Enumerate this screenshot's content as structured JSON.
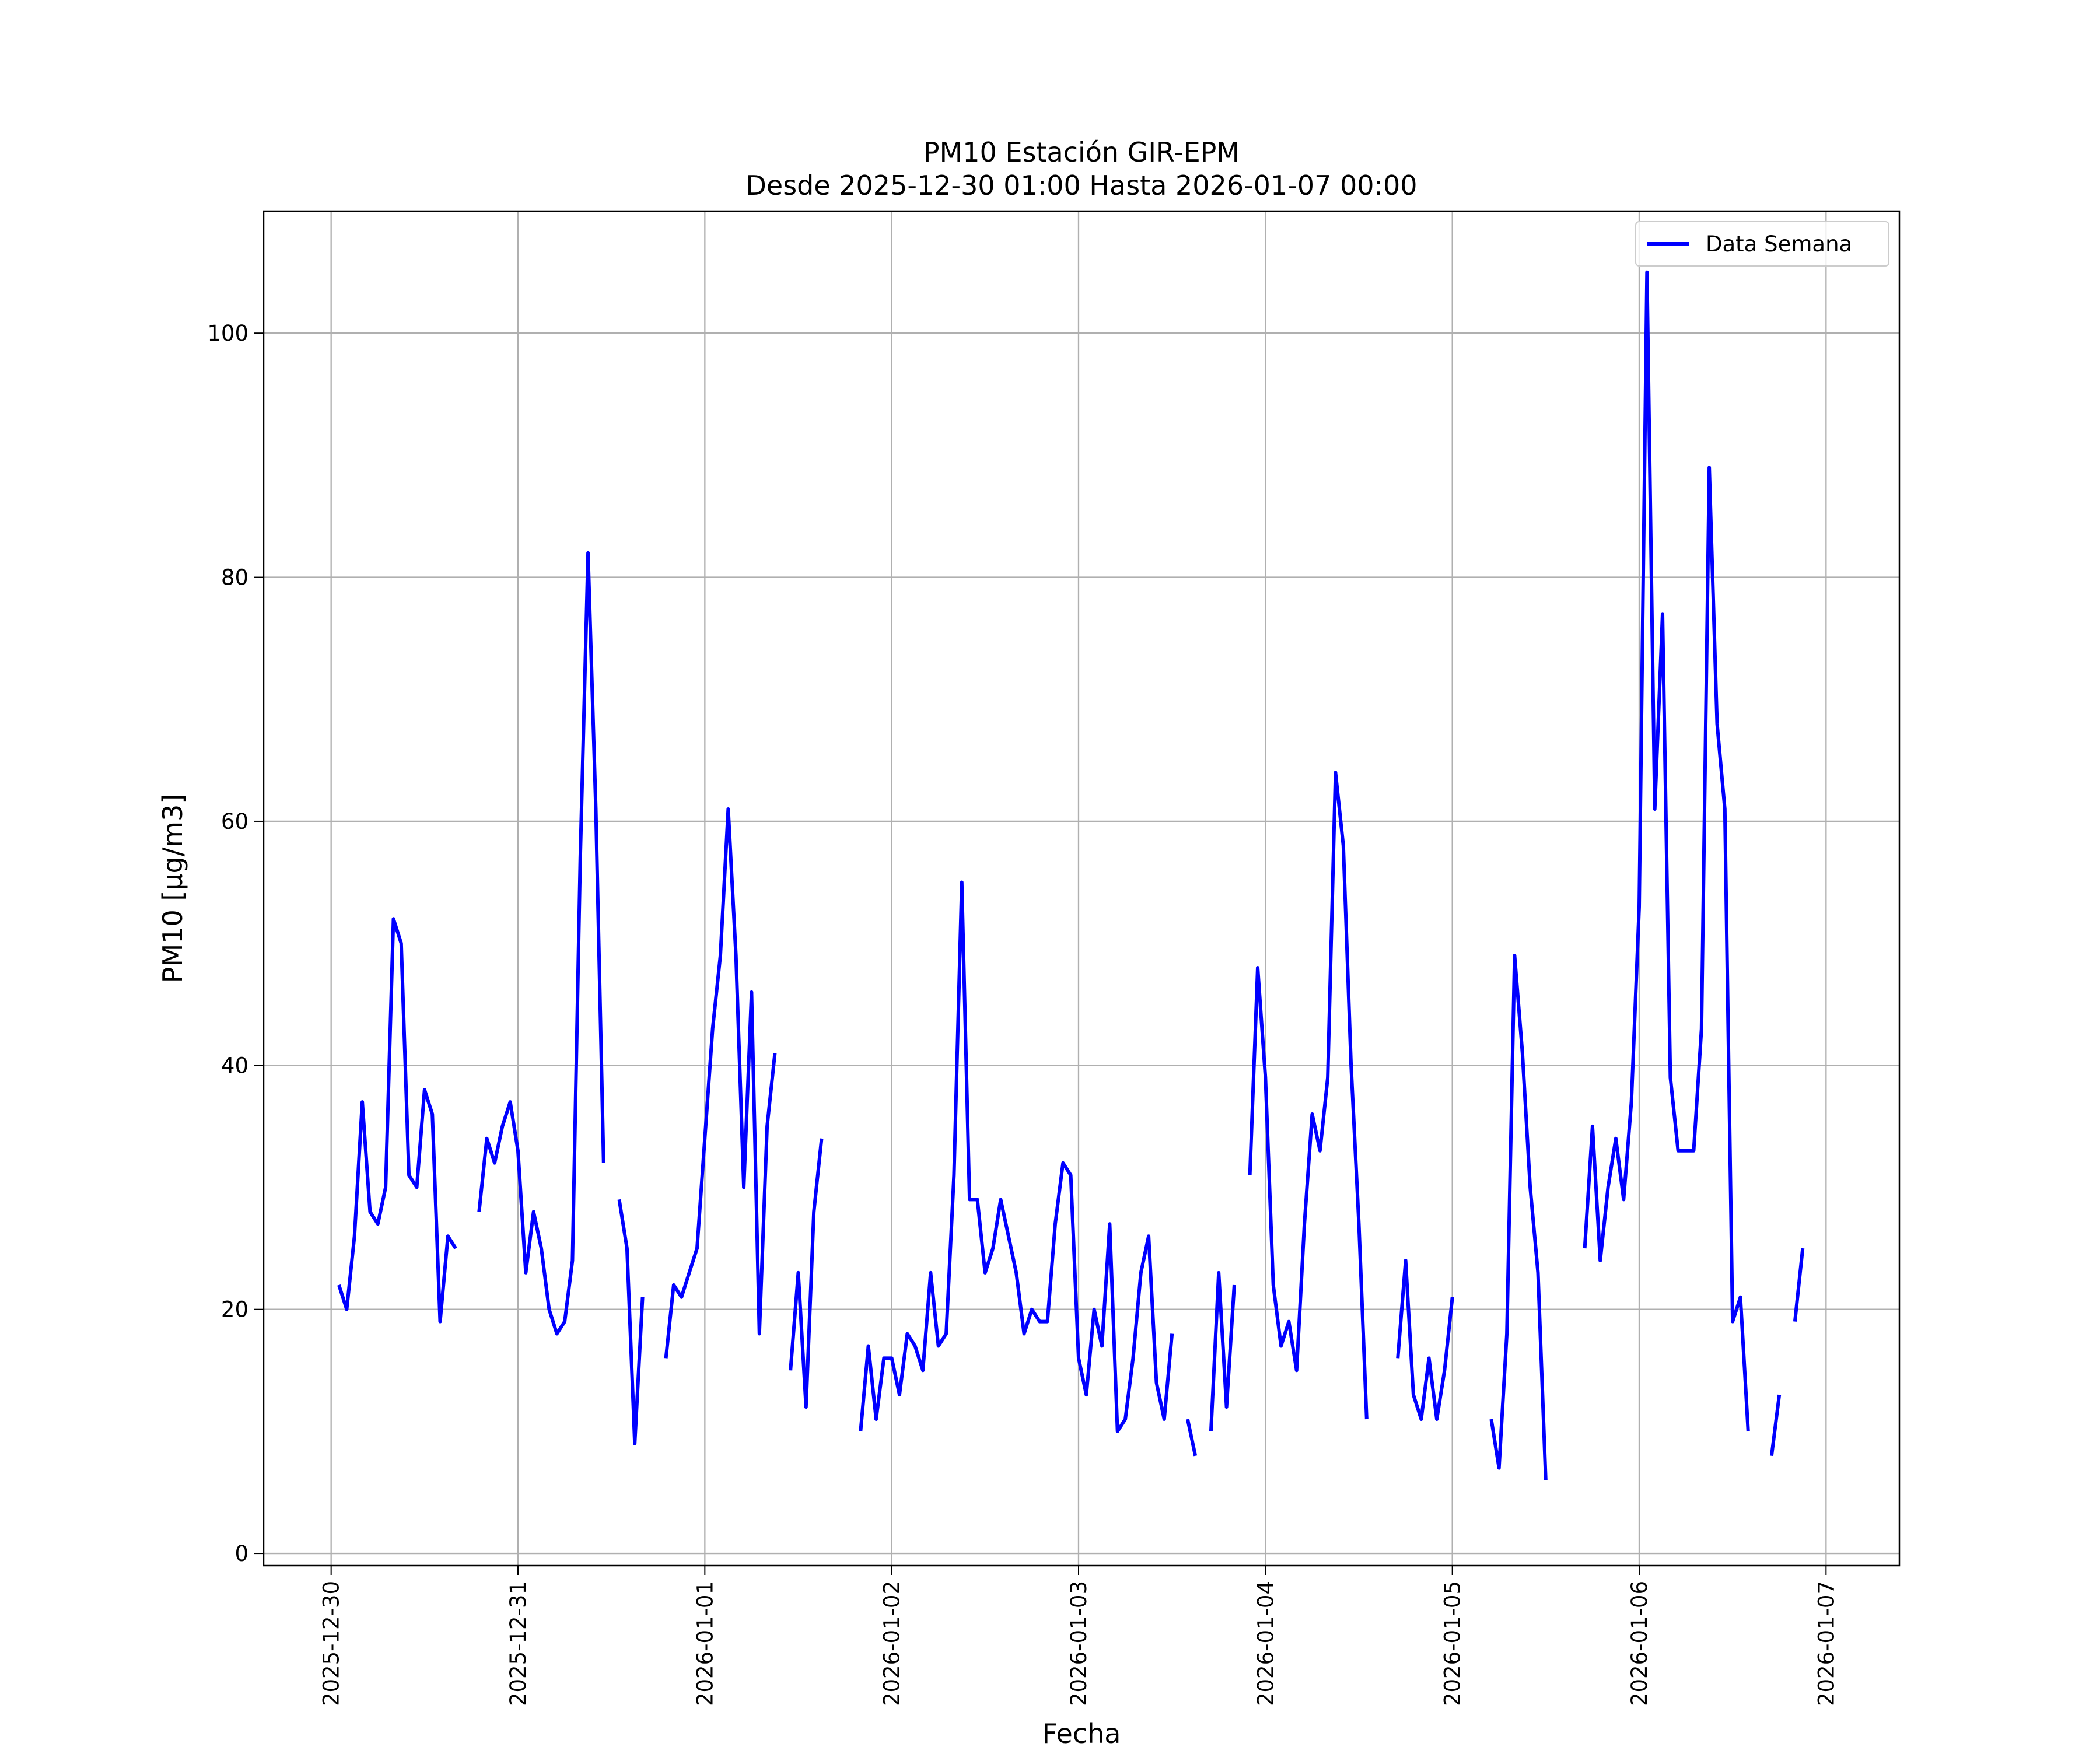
{
  "chart_data": {
    "type": "line",
    "title": "PM10 Estación GIR-EPM",
    "subtitle": "Desde 2025-12-30 01:00 Hasta 2026-01-07 00:00",
    "x_label": "Fecha",
    "y_label": "PM10 [μg/m3]",
    "x": [
      "2025-12-30 01:00",
      "2025-12-30 02:00",
      "2025-12-30 03:00",
      "2025-12-30 04:00",
      "2025-12-30 05:00",
      "2025-12-30 06:00",
      "2025-12-30 07:00",
      "2025-12-30 08:00",
      "2025-12-30 09:00",
      "2025-12-30 10:00",
      "2025-12-30 11:00",
      "2025-12-30 12:00",
      "2025-12-30 13:00",
      "2025-12-30 14:00",
      "2025-12-30 15:00",
      "2025-12-30 16:00",
      "2025-12-30 17:00",
      "2025-12-30 18:00",
      "2025-12-30 19:00",
      "2025-12-30 20:00",
      "2025-12-30 21:00",
      "2025-12-30 22:00",
      "2025-12-30 23:00",
      "2025-12-31 00:00",
      "2025-12-31 01:00",
      "2025-12-31 02:00",
      "2025-12-31 03:00",
      "2025-12-31 04:00",
      "2025-12-31 05:00",
      "2025-12-31 06:00",
      "2025-12-31 07:00",
      "2025-12-31 08:00",
      "2025-12-31 09:00",
      "2025-12-31 10:00",
      "2025-12-31 11:00",
      "2025-12-31 12:00",
      "2025-12-31 13:00",
      "2025-12-31 14:00",
      "2025-12-31 15:00",
      "2025-12-31 16:00",
      "2025-12-31 17:00",
      "2025-12-31 18:00",
      "2025-12-31 19:00",
      "2025-12-31 20:00",
      "2025-12-31 21:00",
      "2025-12-31 22:00",
      "2025-12-31 23:00",
      "2026-01-01 00:00",
      "2026-01-01 01:00",
      "2026-01-01 02:00",
      "2026-01-01 03:00",
      "2026-01-01 04:00",
      "2026-01-01 05:00",
      "2026-01-01 06:00",
      "2026-01-01 07:00",
      "2026-01-01 08:00",
      "2026-01-01 09:00",
      "2026-01-01 10:00",
      "2026-01-01 11:00",
      "2026-01-01 12:00",
      "2026-01-01 13:00",
      "2026-01-01 14:00",
      "2026-01-01 15:00",
      "2026-01-01 16:00",
      "2026-01-01 17:00",
      "2026-01-01 18:00",
      "2026-01-01 19:00",
      "2026-01-01 20:00",
      "2026-01-01 21:00",
      "2026-01-01 22:00",
      "2026-01-01 23:00",
      "2026-01-02 00:00",
      "2026-01-02 01:00",
      "2026-01-02 02:00",
      "2026-01-02 03:00",
      "2026-01-02 04:00",
      "2026-01-02 05:00",
      "2026-01-02 06:00",
      "2026-01-02 07:00",
      "2026-01-02 08:00",
      "2026-01-02 09:00",
      "2026-01-02 10:00",
      "2026-01-02 11:00",
      "2026-01-02 12:00",
      "2026-01-02 13:00",
      "2026-01-02 14:00",
      "2026-01-02 15:00",
      "2026-01-02 16:00",
      "2026-01-02 17:00",
      "2026-01-02 18:00",
      "2026-01-02 19:00",
      "2026-01-02 20:00",
      "2026-01-02 21:00",
      "2026-01-02 22:00",
      "2026-01-02 23:00",
      "2026-01-03 00:00",
      "2026-01-03 01:00",
      "2026-01-03 02:00",
      "2026-01-03 03:00",
      "2026-01-03 04:00",
      "2026-01-03 05:00",
      "2026-01-03 06:00",
      "2026-01-03 07:00",
      "2026-01-03 08:00",
      "2026-01-03 09:00",
      "2026-01-03 10:00",
      "2026-01-03 11:00",
      "2026-01-03 12:00",
      "2026-01-03 13:00",
      "2026-01-03 14:00",
      "2026-01-03 15:00",
      "2026-01-03 16:00",
      "2026-01-03 17:00",
      "2026-01-03 18:00",
      "2026-01-03 19:00",
      "2026-01-03 20:00",
      "2026-01-03 21:00",
      "2026-01-03 22:00",
      "2026-01-03 23:00",
      "2026-01-04 00:00",
      "2026-01-04 01:00",
      "2026-01-04 02:00",
      "2026-01-04 03:00",
      "2026-01-04 04:00",
      "2026-01-04 05:00",
      "2026-01-04 06:00",
      "2026-01-04 07:00",
      "2026-01-04 08:00",
      "2026-01-04 09:00",
      "2026-01-04 10:00",
      "2026-01-04 11:00",
      "2026-01-04 12:00",
      "2026-01-04 13:00",
      "2026-01-04 14:00",
      "2026-01-04 15:00",
      "2026-01-04 16:00",
      "2026-01-04 17:00",
      "2026-01-04 18:00",
      "2026-01-04 19:00",
      "2026-01-04 20:00",
      "2026-01-04 21:00",
      "2026-01-04 22:00",
      "2026-01-04 23:00",
      "2026-01-05 00:00",
      "2026-01-05 01:00",
      "2026-01-05 02:00",
      "2026-01-05 03:00",
      "2026-01-05 04:00",
      "2026-01-05 05:00",
      "2026-01-05 06:00",
      "2026-01-05 07:00",
      "2026-01-05 08:00",
      "2026-01-05 09:00",
      "2026-01-05 10:00",
      "2026-01-05 11:00",
      "2026-01-05 12:00",
      "2026-01-05 13:00",
      "2026-01-05 14:00",
      "2026-01-05 15:00",
      "2026-01-05 16:00",
      "2026-01-05 17:00",
      "2026-01-05 18:00",
      "2026-01-05 19:00",
      "2026-01-05 20:00",
      "2026-01-05 21:00",
      "2026-01-05 22:00",
      "2026-01-05 23:00",
      "2026-01-06 00:00",
      "2026-01-06 01:00",
      "2026-01-06 02:00",
      "2026-01-06 03:00",
      "2026-01-06 04:00",
      "2026-01-06 05:00",
      "2026-01-06 06:00",
      "2026-01-06 07:00",
      "2026-01-06 08:00",
      "2026-01-06 09:00",
      "2026-01-06 10:00",
      "2026-01-06 11:00",
      "2026-01-06 12:00",
      "2026-01-06 13:00",
      "2026-01-06 14:00",
      "2026-01-06 15:00",
      "2026-01-06 16:00",
      "2026-01-06 17:00",
      "2026-01-06 18:00",
      "2026-01-06 19:00",
      "2026-01-06 20:00",
      "2026-01-06 21:00",
      "2026-01-06 22:00",
      "2026-01-06 23:00",
      "2026-01-07 00:00"
    ],
    "series": [
      {
        "name": "Data Semana",
        "color": "#0000ff",
        "values": [
          22,
          20,
          26,
          37,
          28,
          27,
          30,
          52,
          50,
          31,
          30,
          38,
          36,
          19,
          26,
          25,
          null,
          null,
          28,
          34,
          32,
          35,
          37,
          33,
          23,
          28,
          25,
          20,
          18,
          19,
          24,
          57,
          82,
          61,
          32,
          null,
          29,
          25,
          9,
          21,
          null,
          null,
          16,
          22,
          21,
          23,
          25,
          34,
          43,
          49,
          61,
          49,
          30,
          46,
          18,
          35,
          41,
          null,
          15,
          23,
          12,
          28,
          34,
          null,
          null,
          null,
          null,
          10,
          17,
          11,
          16,
          16,
          13,
          18,
          17,
          15,
          23,
          17,
          18,
          31,
          55,
          29,
          29,
          23,
          25,
          29,
          26,
          23,
          18,
          20,
          19,
          19,
          27,
          32,
          31,
          16,
          13,
          20,
          17,
          27,
          10,
          11,
          16,
          23,
          26,
          14,
          11,
          18,
          null,
          11,
          8,
          null,
          10,
          23,
          12,
          22,
          null,
          31,
          48,
          39,
          22,
          17,
          19,
          15,
          27,
          36,
          33,
          39,
          64,
          58,
          40,
          27,
          11,
          null,
          null,
          null,
          16,
          24,
          13,
          11,
          16,
          11,
          15,
          21,
          null,
          null,
          null,
          null,
          11,
          7,
          18,
          49,
          41,
          30,
          23,
          6,
          null,
          null,
          null,
          null,
          25,
          35,
          24,
          30,
          34,
          29,
          37,
          53,
          105,
          61,
          77,
          39,
          33,
          33,
          33,
          43,
          89,
          68,
          61,
          19,
          21,
          10,
          null,
          null,
          8,
          13,
          null,
          19,
          25,
          null,
          null,
          null
        ]
      }
    ],
    "xlim": [
      "2025-12-29 15:20",
      "2026-01-07 09:25"
    ],
    "xticks": [
      {
        "value": "2025-12-30 00:00",
        "label": "2025-12-30"
      },
      {
        "value": "2025-12-31 00:00",
        "label": "2025-12-31"
      },
      {
        "value": "2026-01-01 00:00",
        "label": "2026-01-01"
      },
      {
        "value": "2026-01-02 00:00",
        "label": "2026-01-02"
      },
      {
        "value": "2026-01-03 00:00",
        "label": "2026-01-03"
      },
      {
        "value": "2026-01-04 00:00",
        "label": "2026-01-04"
      },
      {
        "value": "2026-01-05 00:00",
        "label": "2026-01-05"
      },
      {
        "value": "2026-01-06 00:00",
        "label": "2026-01-06"
      },
      {
        "value": "2026-01-07 00:00",
        "label": "2026-01-07"
      }
    ],
    "ylim": [
      -1,
      110
    ],
    "yticks": [
      0,
      20,
      40,
      60,
      80,
      100
    ],
    "grid": true,
    "legend": "upper right"
  }
}
